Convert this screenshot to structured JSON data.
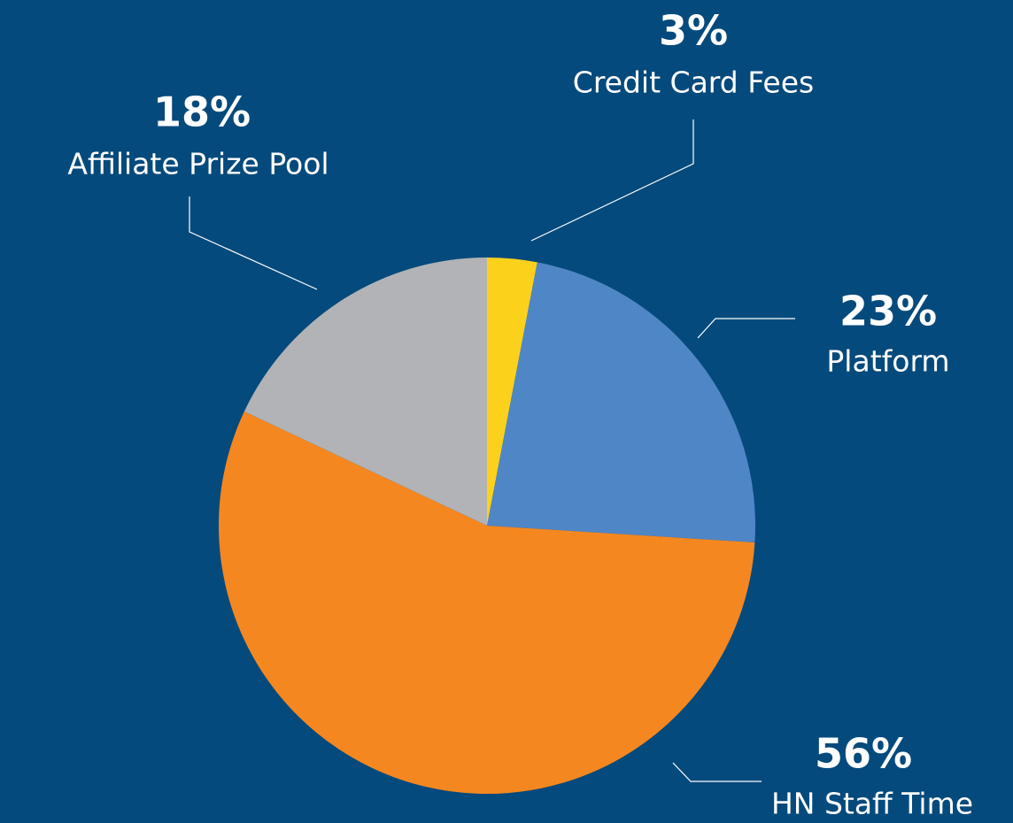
{
  "chart_data": {
    "type": "pie",
    "categories": [
      "Credit Card Fees",
      "Platform",
      "HN Staff Time",
      "Affiliate Prize Pool"
    ],
    "values": [
      3,
      23,
      56,
      18
    ],
    "value_labels": [
      "3%",
      "23%",
      "56%",
      "18%"
    ],
    "colors": [
      "#fcd11c",
      "#4f86c6",
      "#f58720",
      "#b1b3b6"
    ]
  }
}
